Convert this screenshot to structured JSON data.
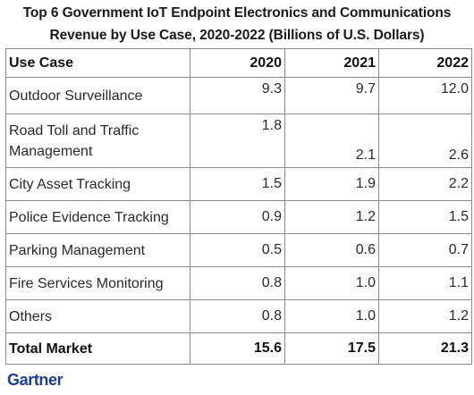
{
  "title": {
    "line1": "Top 6 Government IoT Endpoint Electronics and Communications",
    "line2": "Revenue by Use Case, 2020-2022 (Billions of U.S. Dollars)"
  },
  "table": {
    "headers": [
      "Use Case",
      "2020",
      "2021",
      "2022"
    ],
    "rows": [
      {
        "label": "Outdoor Surveillance",
        "values": [
          "9.3",
          "9.7",
          "12.0"
        ]
      },
      {
        "label_line1": "Road Toll and Traffic",
        "label_line2": "Management",
        "values": [
          "1.8",
          "2.1",
          "2.6"
        ]
      },
      {
        "label": "City Asset Tracking",
        "values": [
          "1.5",
          "1.9",
          "2.2"
        ]
      },
      {
        "label": "Police Evidence Tracking",
        "values": [
          "0.9",
          "1.2",
          "1.5"
        ]
      },
      {
        "label": "Parking Management",
        "values": [
          "0.5",
          "0.6",
          "0.7"
        ]
      },
      {
        "label": "Fire Services Monitoring",
        "values": [
          "0.8",
          "1.0",
          "1.1"
        ]
      },
      {
        "label": "Others",
        "values": [
          "0.8",
          "1.0",
          "1.2"
        ]
      }
    ],
    "total": {
      "label": "Total Market",
      "values": [
        "15.6",
        "17.5",
        "21.3"
      ]
    }
  },
  "logo": "Gartner",
  "colors": {
    "border": "#8a8a8a",
    "logo": "#1f3f8f",
    "text": "#222222"
  }
}
